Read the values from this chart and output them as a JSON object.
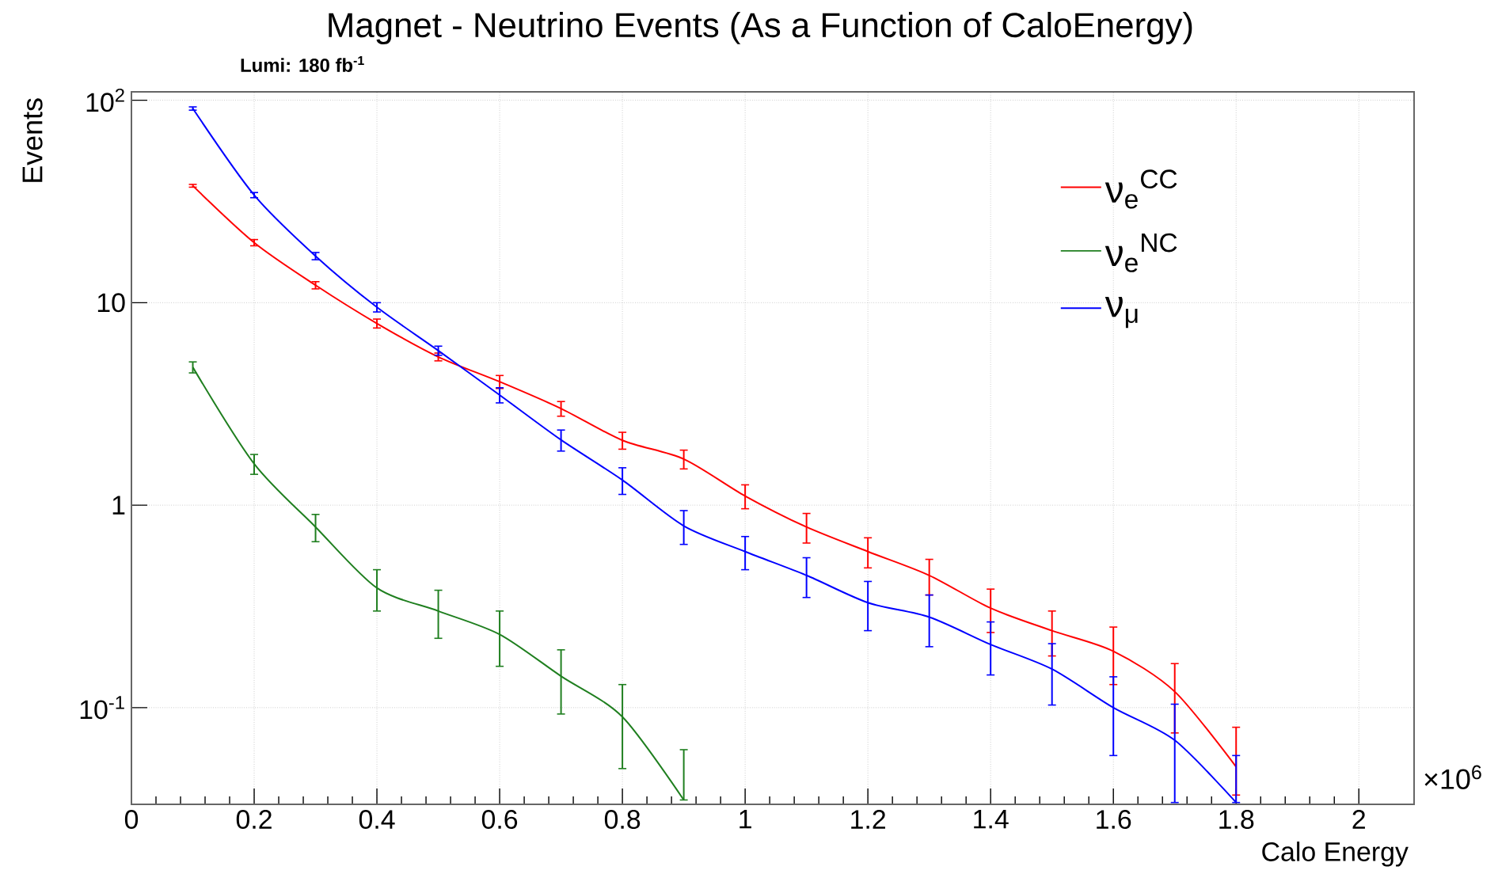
{
  "chart_data": {
    "type": "line",
    "title": "Magnet - Neutrino Events (As a Function of CaloEnergy)",
    "subtitle": "Lumi: 180 fb$^{-1}$",
    "xlabel": "Calo Energy",
    "ylabel": "Events",
    "annotations": [
      "×10$^{6}$"
    ],
    "x": [
      0.1,
      0.2,
      0.3,
      0.4,
      0.5,
      0.6,
      0.7,
      0.8,
      0.9,
      1.0,
      1.1,
      1.2,
      1.3,
      1.4,
      1.5,
      1.6,
      1.7,
      1.8
    ],
    "series": [
      {
        "name": "ν$_{e}$$^{CC}$",
        "color": "#ff0000",
        "values": [
          37.8,
          19.8,
          12.2,
          7.9,
          5.4,
          4.07,
          3.0,
          2.09,
          1.69,
          1.11,
          0.78,
          0.59,
          0.45,
          0.31,
          0.24,
          0.19,
          0.12,
          0.051
        ],
        "errors": [
          0.6,
          0.7,
          0.5,
          0.4,
          0.24,
          0.3,
          0.25,
          0.2,
          0.18,
          0.15,
          0.13,
          0.1,
          0.09,
          0.075,
          0.06,
          0.06,
          0.045,
          [
            0.037,
            0.08
          ]
        ]
      },
      {
        "name": "ν$_{e}$$^{NC}$",
        "color": "#1f7f1f",
        "x": [
          0.1,
          0.2,
          0.3,
          0.4,
          0.5,
          0.6,
          0.7,
          0.8,
          0.9
        ],
        "values": [
          4.8,
          1.6,
          0.78,
          0.39,
          0.3,
          0.23,
          0.143,
          0.09,
          0.035
        ],
        "errors": [
          0.3,
          0.18,
          0.12,
          0.09,
          0.08,
          0.07,
          0.05,
          0.04,
          [
            0.035,
            0.062
          ]
        ]
      },
      {
        "name": "ν$_{μ}$",
        "color": "#0000ff",
        "values": [
          91,
          34,
          17,
          9.5,
          5.8,
          3.5,
          2.1,
          1.33,
          0.79,
          0.59,
          0.45,
          0.33,
          0.28,
          0.205,
          0.155,
          0.1,
          0.069,
          0.034
        ],
        "errors": [
          1.7,
          1.0,
          0.7,
          0.5,
          0.3,
          0.3,
          0.25,
          0.2,
          0.15,
          0.11,
          0.1,
          0.09,
          0.08,
          0.06,
          0.052,
          0.042,
          0.035,
          [
            0.034,
            0.058
          ]
        ]
      }
    ],
    "xlim": [
      0,
      2.09
    ],
    "ylim": [
      0.0333,
      110
    ],
    "xticks": [
      0,
      0.2,
      0.4,
      0.6,
      0.8,
      1,
      1.2,
      1.4,
      1.6,
      1.8,
      2
    ],
    "yticks": [
      {
        "value": 0.1,
        "label": "10$^{-1}$"
      },
      1,
      10,
      {
        "value": 100,
        "label": "10$^{2}$"
      }
    ],
    "log": "y",
    "grid": true,
    "legend": "top right"
  }
}
